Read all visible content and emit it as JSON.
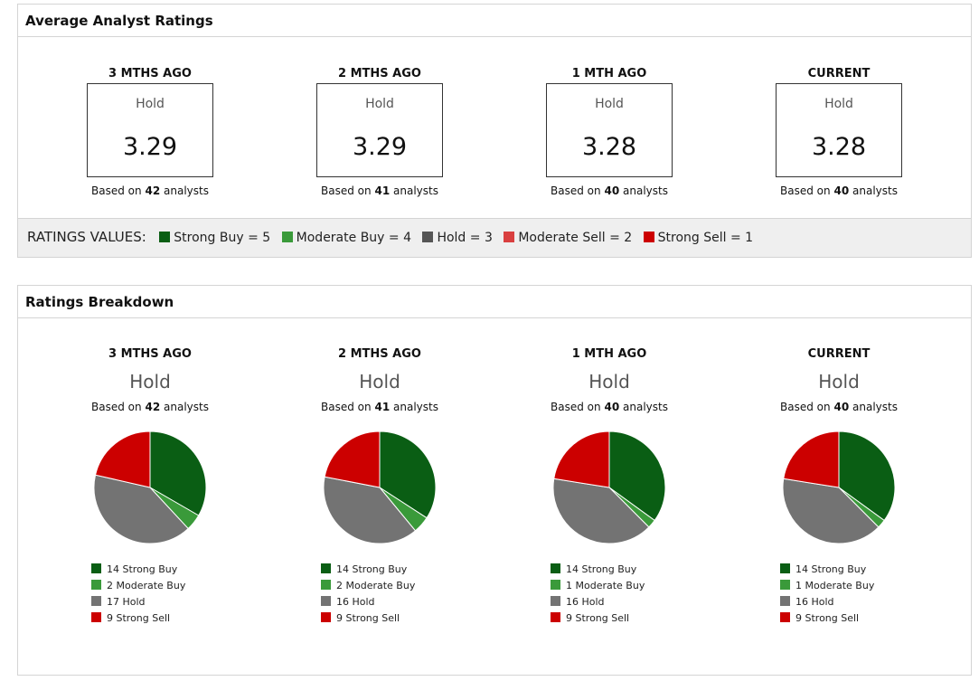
{
  "avg_panel": {
    "title": "Average Analyst Ratings",
    "periods": [
      {
        "label": "3 MTHS AGO",
        "rating": "Hold",
        "score": "3.29",
        "based_prefix": "Based on",
        "analysts": "42",
        "based_suffix": "analysts"
      },
      {
        "label": "2 MTHS AGO",
        "rating": "Hold",
        "score": "3.29",
        "based_prefix": "Based on",
        "analysts": "41",
        "based_suffix": "analysts"
      },
      {
        "label": "1 MTH AGO",
        "rating": "Hold",
        "score": "3.28",
        "based_prefix": "Based on",
        "analysts": "40",
        "based_suffix": "analysts"
      },
      {
        "label": "CURRENT",
        "rating": "Hold",
        "score": "3.28",
        "based_prefix": "Based on",
        "analysts": "40",
        "based_suffix": "analysts"
      }
    ],
    "ratings_values": {
      "title": "RATINGS VALUES:",
      "items": [
        {
          "label": "Strong Buy = 5",
          "color": "#0a5e14"
        },
        {
          "label": "Moderate Buy = 4",
          "color": "#3a9a3a"
        },
        {
          "label": "Hold = 3",
          "color": "#555555"
        },
        {
          "label": "Moderate Sell = 2",
          "color": "#d94040"
        },
        {
          "label": "Strong Sell = 1",
          "color": "#cc0000"
        }
      ]
    }
  },
  "breakdown_panel": {
    "title": "Ratings Breakdown"
  },
  "chart_data": [
    {
      "type": "pie",
      "title": "3 MTHS AGO",
      "subtitle": "Hold",
      "based_prefix": "Based on",
      "analysts": "42",
      "based_suffix": "analysts",
      "slices": [
        {
          "label": "14 Strong Buy",
          "value": 14,
          "color": "#0a5e14"
        },
        {
          "label": "2 Moderate Buy",
          "value": 2,
          "color": "#3a9a3a"
        },
        {
          "label": "17 Hold",
          "value": 17,
          "color": "#737373"
        },
        {
          "label": "9 Strong Sell",
          "value": 9,
          "color": "#cc0000"
        }
      ]
    },
    {
      "type": "pie",
      "title": "2 MTHS AGO",
      "subtitle": "Hold",
      "based_prefix": "Based on",
      "analysts": "41",
      "based_suffix": "analysts",
      "slices": [
        {
          "label": "14 Strong Buy",
          "value": 14,
          "color": "#0a5e14"
        },
        {
          "label": "2 Moderate Buy",
          "value": 2,
          "color": "#3a9a3a"
        },
        {
          "label": "16 Hold",
          "value": 16,
          "color": "#737373"
        },
        {
          "label": "9 Strong Sell",
          "value": 9,
          "color": "#cc0000"
        }
      ]
    },
    {
      "type": "pie",
      "title": "1 MTH AGO",
      "subtitle": "Hold",
      "based_prefix": "Based on",
      "analysts": "40",
      "based_suffix": "analysts",
      "slices": [
        {
          "label": "14 Strong Buy",
          "value": 14,
          "color": "#0a5e14"
        },
        {
          "label": "1 Moderate Buy",
          "value": 1,
          "color": "#3a9a3a"
        },
        {
          "label": "16 Hold",
          "value": 16,
          "color": "#737373"
        },
        {
          "label": "9 Strong Sell",
          "value": 9,
          "color": "#cc0000"
        }
      ]
    },
    {
      "type": "pie",
      "title": "CURRENT",
      "subtitle": "Hold",
      "based_prefix": "Based on",
      "analysts": "40",
      "based_suffix": "analysts",
      "slices": [
        {
          "label": "14 Strong Buy",
          "value": 14,
          "color": "#0a5e14"
        },
        {
          "label": "1 Moderate Buy",
          "value": 1,
          "color": "#3a9a3a"
        },
        {
          "label": "16 Hold",
          "value": 16,
          "color": "#737373"
        },
        {
          "label": "9 Strong Sell",
          "value": 9,
          "color": "#cc0000"
        }
      ]
    }
  ]
}
